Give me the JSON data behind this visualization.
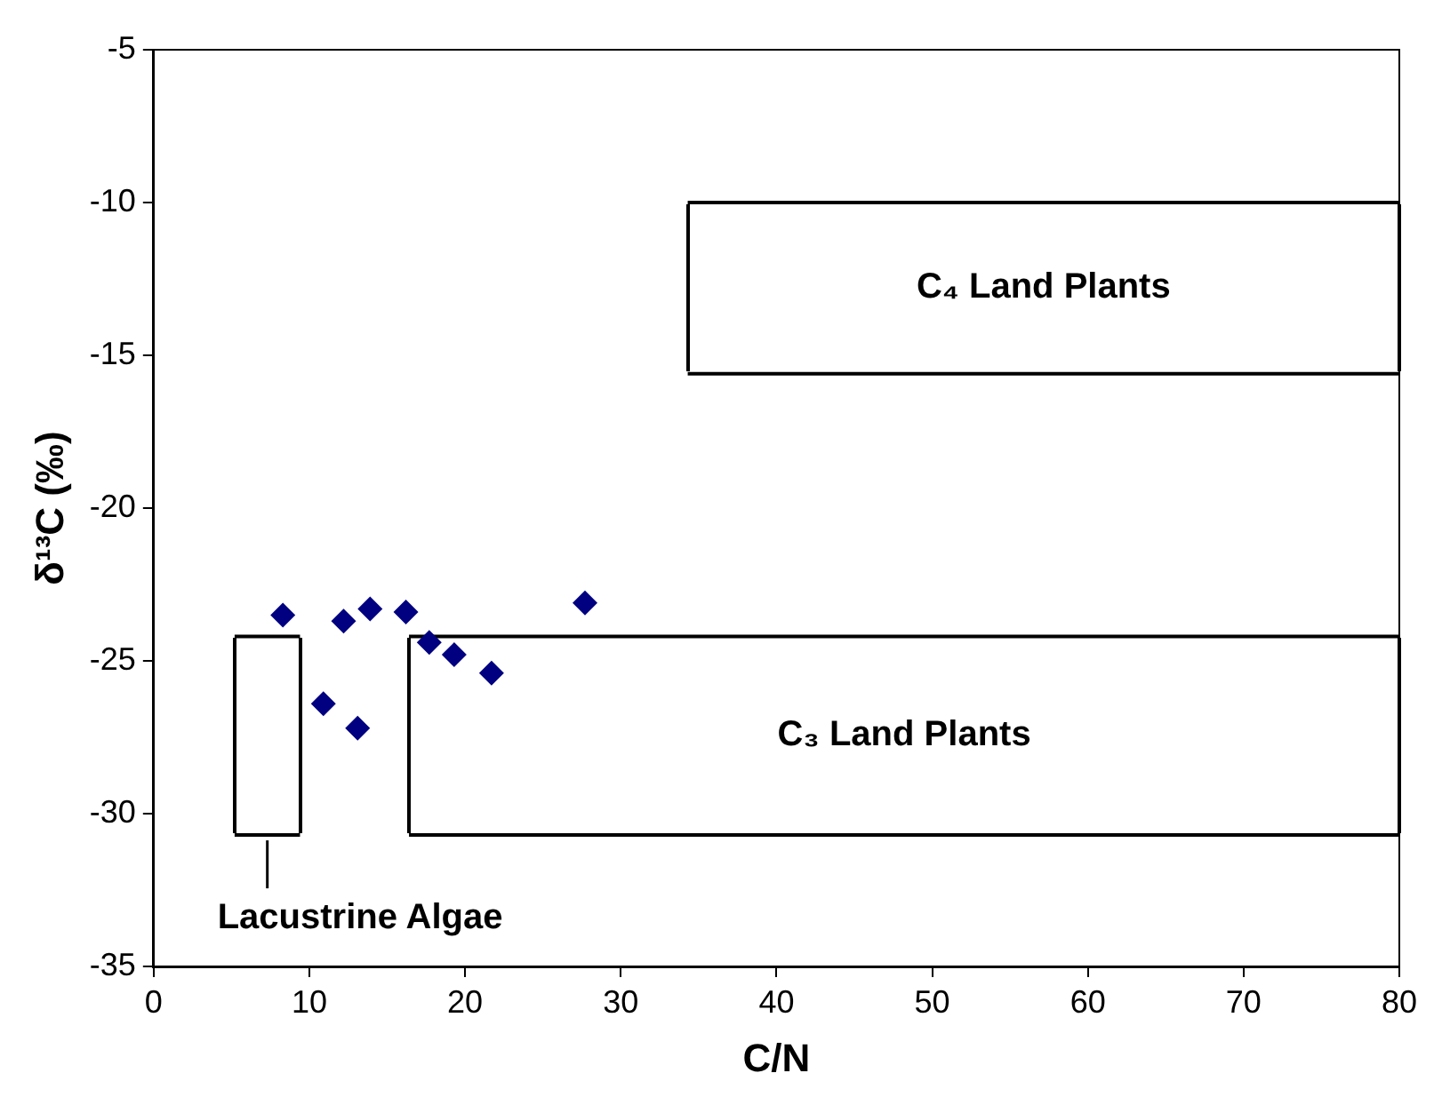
{
  "chart_data": {
    "type": "scatter",
    "xlabel": "C/N",
    "ylabel": "δ¹³C (‰)",
    "xlim": [
      0,
      80
    ],
    "xticks": [
      0,
      10,
      20,
      30,
      40,
      50,
      60,
      70,
      80
    ],
    "ylim": [
      -35,
      -5
    ],
    "yticks": [
      -35,
      -30,
      -25,
      -20,
      -15,
      -10,
      -5
    ],
    "grid": false,
    "legend": false,
    "series": [
      {
        "marker": "diamond",
        "color": "#000080",
        "x": [
          8.3,
          10.9,
          12.2,
          13.1,
          13.9,
          16.2,
          17.7,
          19.3,
          21.7,
          27.7
        ],
        "values": [
          -23.5,
          -26.4,
          -23.7,
          -27.2,
          -23.3,
          -23.4,
          -24.4,
          -24.8,
          -25.4,
          -23.1
        ]
      },
      {
        "type": "line",
        "marker": "none",
        "color": "#000000",
        "x": [
          34.3,
          80
        ],
        "values": [
          -10,
          -10
        ]
      },
      {
        "type": "line",
        "marker": "none",
        "color": "#000000",
        "x": [
          34.3,
          80
        ],
        "values": [
          -15.6,
          -15.6
        ]
      },
      {
        "type": "line",
        "marker": "none",
        "color": "#000000",
        "x": [
          16.4,
          80
        ],
        "values": [
          -24.2,
          -24.2
        ]
      },
      {
        "type": "line",
        "marker": "none",
        "color": "#000000",
        "x": [
          16.4,
          80
        ],
        "values": [
          -30.7,
          -30.7
        ]
      },
      {
        "type": "line",
        "marker": "none",
        "color": "#000000",
        "x": [
          5.2,
          9.4
        ],
        "values": [
          -24.2,
          -24.2
        ]
      },
      {
        "type": "line",
        "marker": "none",
        "color": "#000000",
        "x": [
          5.2,
          9.4
        ],
        "values": [
          -30.7,
          -30.7
        ]
      }
    ],
    "annotations": [
      "C₄ Land Plants",
      "C₃ Land Plants",
      {
        "text": "Lacustrine Algae",
        "x": 7.3,
        "y": -30.7
      }
    ]
  }
}
